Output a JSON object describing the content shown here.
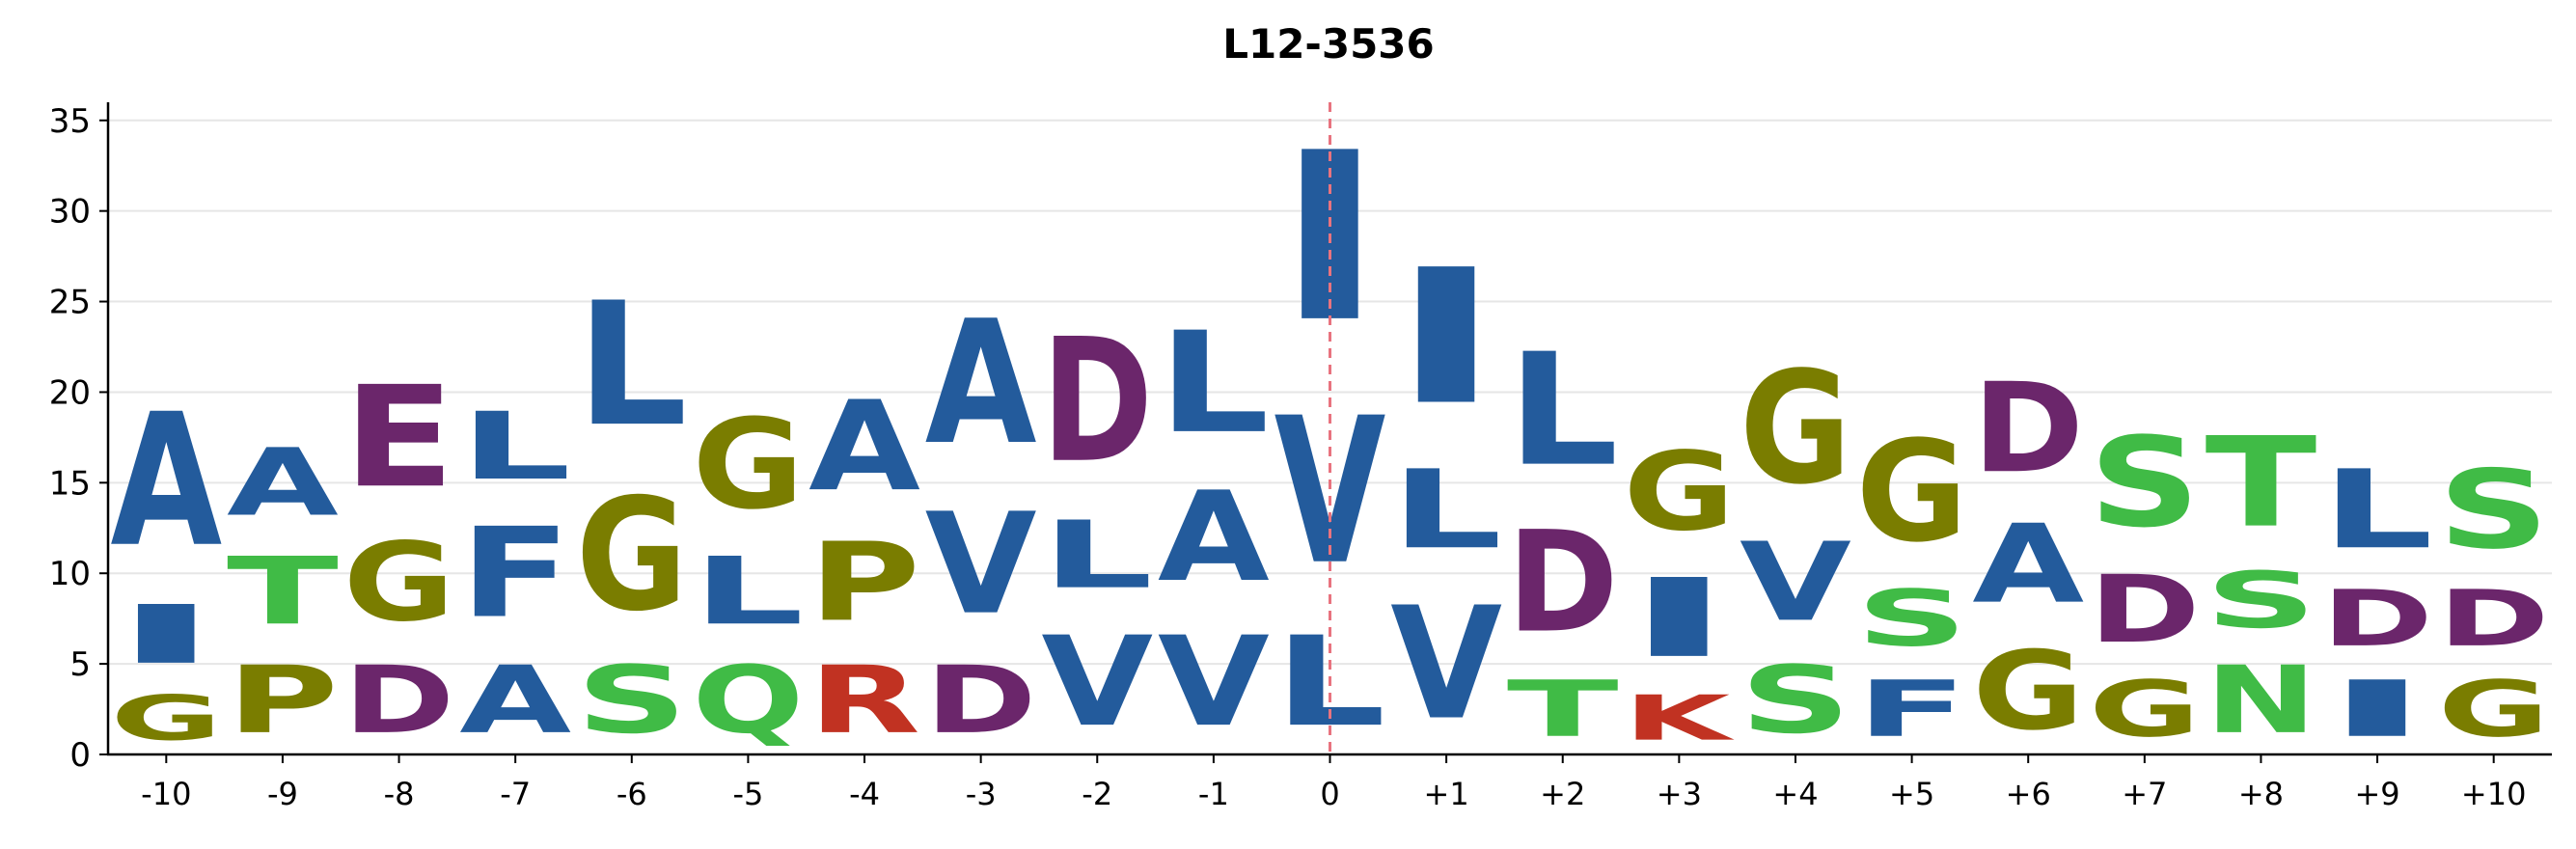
{
  "chart_data": {
    "type": "sequence-logo",
    "title": "L12-3536",
    "xlabel": "",
    "ylabel": "",
    "ylim": [
      0,
      36
    ],
    "yticks": [
      "0",
      "5",
      "10",
      "15",
      "20",
      "25",
      "30",
      "35"
    ],
    "grid": "horizontal",
    "reference_line": {
      "position": "0",
      "style": "dashed",
      "color": "#e8737f"
    },
    "positions": [
      "-10",
      "-9",
      "-8",
      "-7",
      "-6",
      "-5",
      "-4",
      "-3",
      "-2",
      "-1",
      "0",
      "+1",
      "+2",
      "+3",
      "+4",
      "+5",
      "+6",
      "+7",
      "+8",
      "+9",
      "+10"
    ],
    "colors": {
      "A": "#235b9c",
      "I": "#235b9c",
      "L": "#235b9c",
      "V": "#235b9c",
      "F": "#235b9c",
      "G": "#7a7d00",
      "P": "#7a7d00",
      "S": "#40bb46",
      "T": "#40bb46",
      "Q": "#40bb46",
      "N": "#40bb46",
      "D": "#6b266b",
      "E": "#6b266b",
      "R": "#c13222",
      "K": "#c13222"
    },
    "columns": [
      {
        "pos": "-10",
        "letters": [
          {
            "aa": "G",
            "from": 0.0,
            "to": 4.0
          },
          {
            "aa": "I",
            "from": 4.0,
            "to": 9.2
          },
          {
            "aa": "A",
            "from": 9.2,
            "to": 21.0
          }
        ]
      },
      {
        "pos": "-9",
        "letters": [
          {
            "aa": "P",
            "from": 0.0,
            "to": 6.0
          },
          {
            "aa": "T",
            "from": 6.0,
            "to": 12.0
          },
          {
            "aa": "A",
            "from": 12.0,
            "to": 18.0
          }
        ]
      },
      {
        "pos": "-8",
        "letters": [
          {
            "aa": "D",
            "from": 0.0,
            "to": 6.0
          },
          {
            "aa": "G",
            "from": 6.0,
            "to": 13.0
          },
          {
            "aa": "E",
            "from": 13.0,
            "to": 22.0
          }
        ]
      },
      {
        "pos": "-7",
        "letters": [
          {
            "aa": "A",
            "from": 0.0,
            "to": 6.0
          },
          {
            "aa": "F",
            "from": 6.0,
            "to": 14.0
          },
          {
            "aa": "L",
            "from": 14.0,
            "to": 20.0
          }
        ]
      },
      {
        "pos": "-6",
        "letters": [
          {
            "aa": "S",
            "from": 0.0,
            "to": 6.0
          },
          {
            "aa": "G",
            "from": 6.0,
            "to": 16.0
          },
          {
            "aa": "L",
            "from": 16.0,
            "to": 27.0
          }
        ]
      },
      {
        "pos": "-5",
        "letters": [
          {
            "aa": "Q",
            "from": 0.0,
            "to": 6.0
          },
          {
            "aa": "L",
            "from": 6.0,
            "to": 12.0
          },
          {
            "aa": "G",
            "from": 12.0,
            "to": 20.0
          }
        ]
      },
      {
        "pos": "-4",
        "letters": [
          {
            "aa": "R",
            "from": 0.0,
            "to": 6.0
          },
          {
            "aa": "P",
            "from": 6.0,
            "to": 13.0
          },
          {
            "aa": "A",
            "from": 13.0,
            "to": 21.0
          }
        ]
      },
      {
        "pos": "-3",
        "letters": [
          {
            "aa": "D",
            "from": 0.0,
            "to": 6.0
          },
          {
            "aa": "V",
            "from": 6.0,
            "to": 15.0
          },
          {
            "aa": "A",
            "from": 15.0,
            "to": 26.0
          }
        ]
      },
      {
        "pos": "-2",
        "letters": [
          {
            "aa": "V",
            "from": 0.0,
            "to": 8.0
          },
          {
            "aa": "L",
            "from": 8.0,
            "to": 14.0
          },
          {
            "aa": "D",
            "from": 14.0,
            "to": 25.0
          }
        ]
      },
      {
        "pos": "-1",
        "letters": [
          {
            "aa": "V",
            "from": 0.0,
            "to": 8.0
          },
          {
            "aa": "A",
            "from": 8.0,
            "to": 16.0
          },
          {
            "aa": "L",
            "from": 16.0,
            "to": 25.0
          }
        ]
      },
      {
        "pos": "0",
        "letters": [
          {
            "aa": "L",
            "from": 0.0,
            "to": 8.0
          },
          {
            "aa": "V",
            "from": 8.0,
            "to": 21.0
          },
          {
            "aa": "I",
            "from": 21.0,
            "to": 36.0
          }
        ]
      },
      {
        "pos": "+1",
        "letters": [
          {
            "aa": "V",
            "from": 0.0,
            "to": 10.0
          },
          {
            "aa": "L",
            "from": 10.0,
            "to": 17.0
          },
          {
            "aa": "I",
            "from": 17.0,
            "to": 29.0
          }
        ]
      },
      {
        "pos": "+2",
        "letters": [
          {
            "aa": "T",
            "from": 0.0,
            "to": 5.0
          },
          {
            "aa": "D",
            "from": 5.0,
            "to": 14.0
          },
          {
            "aa": "L",
            "from": 14.0,
            "to": 24.0
          }
        ]
      },
      {
        "pos": "+3",
        "letters": [
          {
            "aa": "K",
            "from": 0.0,
            "to": 4.0
          },
          {
            "aa": "I",
            "from": 4.0,
            "to": 11.0
          },
          {
            "aa": "G",
            "from": 11.0,
            "to": 18.0
          }
        ]
      },
      {
        "pos": "+4",
        "letters": [
          {
            "aa": "S",
            "from": 0.0,
            "to": 6.0
          },
          {
            "aa": "V",
            "from": 6.0,
            "to": 13.0
          },
          {
            "aa": "G",
            "from": 13.0,
            "to": 23.0
          }
        ]
      },
      {
        "pos": "+5",
        "letters": [
          {
            "aa": "F",
            "from": 0.0,
            "to": 5.0
          },
          {
            "aa": "S",
            "from": 5.0,
            "to": 10.0
          },
          {
            "aa": "G",
            "from": 10.0,
            "to": 19.0
          }
        ]
      },
      {
        "pos": "+6",
        "letters": [
          {
            "aa": "G",
            "from": 0.0,
            "to": 7.0
          },
          {
            "aa": "A",
            "from": 7.0,
            "to": 14.0
          },
          {
            "aa": "D",
            "from": 14.0,
            "to": 22.0
          }
        ]
      },
      {
        "pos": "+7",
        "letters": [
          {
            "aa": "G",
            "from": 0.0,
            "to": 5.0
          },
          {
            "aa": "D",
            "from": 5.0,
            "to": 11.0
          },
          {
            "aa": "S",
            "from": 11.0,
            "to": 19.0
          }
        ]
      },
      {
        "pos": "+8",
        "letters": [
          {
            "aa": "N",
            "from": 0.0,
            "to": 6.0
          },
          {
            "aa": "S",
            "from": 6.0,
            "to": 11.0
          },
          {
            "aa": "T",
            "from": 11.0,
            "to": 19.0
          }
        ]
      },
      {
        "pos": "+9",
        "letters": [
          {
            "aa": "I",
            "from": 0.0,
            "to": 5.0
          },
          {
            "aa": "D",
            "from": 5.0,
            "to": 10.0
          },
          {
            "aa": "L",
            "from": 10.0,
            "to": 17.0
          }
        ]
      },
      {
        "pos": "+10",
        "letters": [
          {
            "aa": "G",
            "from": 0.0,
            "to": 5.0
          },
          {
            "aa": "D",
            "from": 5.0,
            "to": 10.0
          },
          {
            "aa": "S",
            "from": 10.0,
            "to": 17.0
          }
        ]
      }
    ]
  }
}
